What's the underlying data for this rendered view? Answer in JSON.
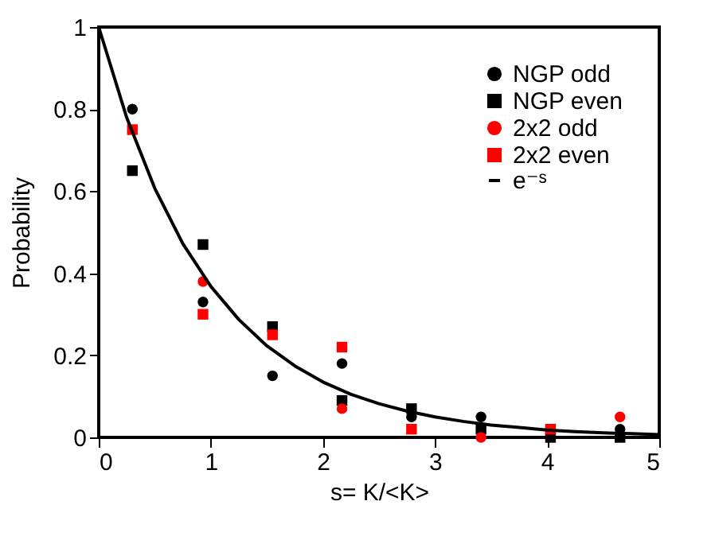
{
  "chart_data": {
    "type": "scatter",
    "xlabel": "s= K/<K>",
    "ylabel": "Probability",
    "xlim": [
      0,
      5
    ],
    "ylim": [
      0,
      1
    ],
    "xticks": [
      0,
      1,
      2,
      3,
      4,
      5
    ],
    "yticks": [
      0,
      0.2,
      0.4,
      0.6,
      0.8,
      1
    ],
    "grid": false,
    "legend": "top right",
    "x": [
      0.3,
      0.93,
      1.55,
      2.17,
      2.79,
      3.41,
      4.03,
      4.65
    ],
    "series": [
      {
        "name": "NGP odd",
        "color": "#000000",
        "marker": "circle",
        "values": [
          0.8,
          0.33,
          0.15,
          0.18,
          0.05,
          0.05,
          null,
          0.02
        ]
      },
      {
        "name": "NGP even",
        "color": "#000000",
        "marker": "square",
        "values": [
          0.65,
          0.47,
          0.27,
          0.09,
          0.07,
          0.02,
          0,
          0
        ]
      },
      {
        "name": "2x2 odd",
        "color": "#ff0000",
        "marker": "circle",
        "values": [
          null,
          0.38,
          null,
          0.07,
          null,
          0,
          null,
          0.05
        ]
      },
      {
        "name": "2x2 even",
        "color": "#ff0000",
        "marker": "square",
        "values": [
          0.75,
          0.3,
          0.25,
          0.22,
          0.02,
          null,
          0.02,
          null
        ]
      },
      {
        "name": "e⁻ˢ",
        "color": "#000000",
        "type": "line",
        "x": [
          0,
          0.25,
          0.5,
          0.75,
          1,
          1.25,
          1.5,
          1.75,
          2,
          2.25,
          2.5,
          2.75,
          3,
          3.25,
          3.5,
          3.75,
          4,
          4.25,
          4.5,
          4.75,
          5
        ],
        "values": [
          1,
          0.779,
          0.607,
          0.472,
          0.368,
          0.287,
          0.223,
          0.174,
          0.135,
          0.105,
          0.082,
          0.064,
          0.05,
          0.039,
          0.03,
          0.024,
          0.018,
          0.014,
          0.011,
          0.009,
          0.007
        ]
      }
    ]
  }
}
